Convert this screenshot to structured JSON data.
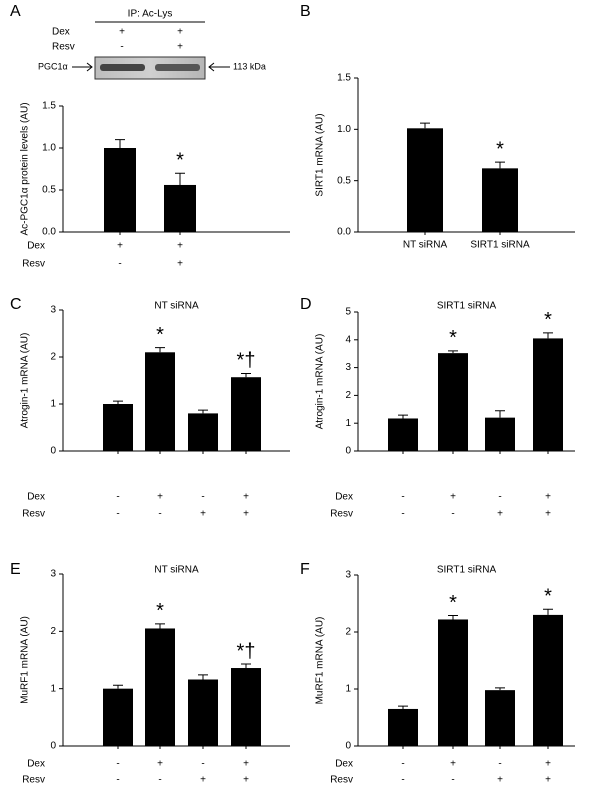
{
  "chart_data": [
    {
      "type": "bar",
      "panel": "A",
      "ylabel": "Ac-PGC1α protein levels (AU)",
      "blot": {
        "header": "IP: Ac-Lys",
        "rows": [
          {
            "label": "Dex",
            "values": [
              "+",
              "+"
            ]
          },
          {
            "label": "Resv",
            "values": [
              "-",
              "+"
            ]
          }
        ],
        "band_label": "PGC1α",
        "size_label": "113 kDa"
      },
      "conditions": [
        {
          "label": "Dex",
          "values": [
            "+",
            "+"
          ]
        },
        {
          "label": "Resv",
          "values": [
            "-",
            "+"
          ]
        }
      ],
      "values": [
        1.0,
        0.56
      ],
      "errors": [
        0.1,
        0.14
      ],
      "markers": [
        null,
        "*"
      ],
      "color": "#000000",
      "ylim": [
        0,
        1.5
      ],
      "yticks": [
        {
          "value": 0,
          "label": "0.0"
        },
        {
          "value": 0.5,
          "label": "0.5"
        },
        {
          "value": 1,
          "label": "1.0"
        },
        {
          "value": 1.5,
          "label": "1.5"
        }
      ]
    },
    {
      "type": "bar",
      "panel": "B",
      "ylabel": "SIRT1 mRNA (AU)",
      "categories": [
        "NT siRNA",
        "SIRT1 siRNA"
      ],
      "values": [
        1.01,
        0.62
      ],
      "errors": [
        0.05,
        0.06
      ],
      "markers": [
        null,
        "*"
      ],
      "color": "#000000",
      "ylim": [
        0,
        1.5
      ],
      "yticks": [
        {
          "value": 0,
          "label": "0.0"
        },
        {
          "value": 0.5,
          "label": "0.5"
        },
        {
          "value": 1,
          "label": "1.0"
        },
        {
          "value": 1.5,
          "label": "1.5"
        }
      ]
    },
    {
      "type": "bar",
      "panel": "C",
      "title": "NT siRNA",
      "ylabel": "Atrogin-1 mRNA (AU)",
      "conditions": [
        {
          "label": "Dex",
          "values": [
            "-",
            "+",
            "-",
            "+"
          ]
        },
        {
          "label": "Resv",
          "values": [
            "-",
            "-",
            "+",
            "+"
          ]
        }
      ],
      "values": [
        1.0,
        2.1,
        0.8,
        1.57
      ],
      "errors": [
        0.06,
        0.1,
        0.07,
        0.08
      ],
      "markers": [
        null,
        "*",
        null,
        "*†"
      ],
      "color": "#000000",
      "ylim": [
        0,
        3
      ],
      "yticks": [
        0,
        1,
        2,
        3
      ]
    },
    {
      "type": "bar",
      "panel": "D",
      "title": "SIRT1 siRNA",
      "ylabel": "Atrogin-1 mRNA (AU)",
      "conditions": [
        {
          "label": "Dex",
          "values": [
            "-",
            "+",
            "-",
            "+"
          ]
        },
        {
          "label": "Resv",
          "values": [
            "-",
            "-",
            "+",
            "+"
          ]
        }
      ],
      "values": [
        1.17,
        3.52,
        1.2,
        4.05
      ],
      "errors": [
        0.12,
        0.08,
        0.25,
        0.2
      ],
      "markers": [
        null,
        "*",
        null,
        "*"
      ],
      "color": "#000000",
      "ylim": [
        0,
        5
      ],
      "yticks": [
        0,
        1,
        2,
        3,
        4,
        5
      ]
    },
    {
      "type": "bar",
      "panel": "E",
      "title": "NT siRNA",
      "ylabel": "MuRF1 mRNA (AU)",
      "conditions": [
        {
          "label": "Dex",
          "values": [
            "-",
            "+",
            "-",
            "+"
          ]
        },
        {
          "label": "Resv",
          "values": [
            "-",
            "-",
            "+",
            "+"
          ]
        }
      ],
      "values": [
        1.0,
        2.05,
        1.16,
        1.36
      ],
      "errors": [
        0.06,
        0.08,
        0.08,
        0.07
      ],
      "markers": [
        null,
        "*",
        null,
        "*†"
      ],
      "color": "#000000",
      "ylim": [
        0,
        3
      ],
      "yticks": [
        0,
        1,
        2,
        3
      ]
    },
    {
      "type": "bar",
      "panel": "F",
      "title": "SIRT1 siRNA",
      "ylabel": "MuRF1 mRNA (AU)",
      "conditions": [
        {
          "label": "Dex",
          "values": [
            "-",
            "+",
            "-",
            "+"
          ]
        },
        {
          "label": "Resv",
          "values": [
            "-",
            "-",
            "+",
            "+"
          ]
        }
      ],
      "values": [
        0.65,
        2.22,
        0.98,
        2.3
      ],
      "errors": [
        0.05,
        0.07,
        0.04,
        0.1
      ],
      "markers": [
        null,
        "*",
        null,
        "*"
      ],
      "color": "#000000",
      "ylim": [
        0,
        3
      ],
      "yticks": [
        0,
        1,
        2,
        3
      ]
    }
  ]
}
